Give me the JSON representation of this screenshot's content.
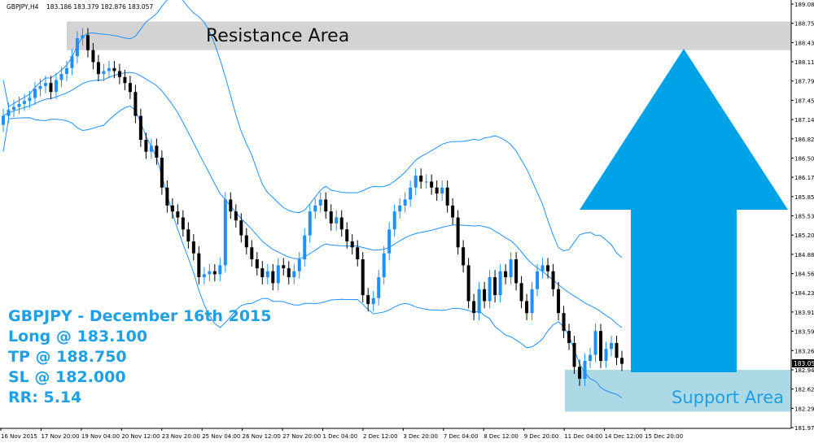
{
  "header": {
    "symbol": "GBPJPY,H4",
    "ohlc": "183.186 183.379 182.876 183.057"
  },
  "zones": {
    "resistance_label": "Resistance Area",
    "support_label": "Support Area"
  },
  "trade_box": {
    "lines": [
      "GBPJPY - December 16th 2015",
      "Long @ 183.100",
      "TP @ 188.750",
      "SL @ 182.000",
      "RR: 5.14"
    ]
  },
  "current_price_label": "183.057",
  "colors": {
    "bull": "#1e90ff",
    "bear": "#000000",
    "band": "#1e90ff",
    "resistance_zone": "#d3d3d3",
    "support_zone": "#add8e6",
    "arrow": "#00a2e8",
    "text_accent": "#1e9fe6"
  },
  "chart_data": {
    "type": "candlestick",
    "y_axis": {
      "ylim": [
        181.97,
        189.085
      ],
      "tick_labels": [
        "189.085",
        "188.750",
        "188.435",
        "188.110",
        "187.790",
        "187.455",
        "187.145",
        "186.820",
        "186.500",
        "186.175",
        "185.850",
        "185.530",
        "185.205",
        "184.880",
        "184.560",
        "184.235",
        "183.910",
        "183.590",
        "183.265",
        "182.940",
        "182.620",
        "182.295",
        "181.970"
      ]
    },
    "x_axis": {
      "tick_labels": [
        "16 Nov 2015",
        "17 Nov 20:00",
        "19 Nov 04:00",
        "20 Nov 12:00",
        "23 Nov 20:00",
        "25 Nov 04:00",
        "26 Nov 12:00",
        "27 Nov 20:00",
        "1 Dec 04:00",
        "2 Dec 12:00",
        "3 Dec 20:00",
        "7 Dec 04:00",
        "8 Dec 12:00",
        "9 Dec 20:00",
        "11 Dec 04:00",
        "14 Dec 12:00",
        "15 Dec 20:00"
      ]
    },
    "resistance_zone": [
      188.3,
      188.78
    ],
    "support_zone": [
      182.25,
      182.95
    ],
    "trend_arrow": "up",
    "series": [
      {
        "name": "candles",
        "close": [
          187.2,
          187.3,
          187.35,
          187.4,
          187.45,
          187.5,
          187.65,
          187.7,
          187.75,
          187.6,
          187.8,
          187.9,
          188.0,
          188.2,
          188.5,
          188.55,
          188.3,
          188.1,
          187.9,
          187.95,
          188.0,
          187.95,
          187.85,
          187.75,
          187.6,
          187.2,
          186.8,
          186.6,
          186.7,
          186.5,
          186.0,
          185.7,
          185.6,
          185.5,
          185.3,
          185.1,
          184.9,
          184.5,
          184.55,
          184.6,
          184.55,
          184.7,
          185.8,
          185.6,
          185.45,
          185.2,
          185.0,
          184.8,
          184.65,
          184.5,
          184.6,
          184.4,
          184.7,
          184.65,
          184.5,
          184.6,
          184.8,
          185.2,
          185.6,
          185.7,
          185.8,
          185.6,
          185.4,
          185.5,
          185.3,
          185.1,
          185.0,
          184.8,
          184.2,
          184.05,
          184.15,
          184.5,
          184.9,
          185.3,
          185.6,
          185.7,
          185.8,
          186.0,
          186.2,
          186.1,
          186.1,
          186.0,
          185.9,
          186.0,
          185.7,
          185.5,
          185.0,
          184.7,
          184.1,
          183.9,
          184.3,
          184.1,
          184.5,
          184.2,
          184.6,
          184.5,
          184.8,
          184.4,
          184.1,
          183.9,
          184.3,
          184.6,
          184.7,
          184.6,
          184.3,
          183.9,
          183.6,
          183.4,
          183.0,
          182.8,
          183.1,
          183.2,
          183.6,
          183.1,
          183.3,
          183.4,
          183.15,
          183.05
        ],
        "open": [
          187.05,
          187.2,
          187.3,
          187.35,
          187.4,
          187.45,
          187.5,
          187.65,
          187.7,
          187.75,
          187.6,
          187.8,
          187.9,
          188.0,
          188.2,
          188.5,
          188.55,
          188.3,
          188.1,
          187.9,
          187.95,
          188.0,
          187.95,
          187.85,
          187.75,
          187.6,
          187.2,
          186.8,
          186.6,
          186.7,
          186.5,
          186.0,
          185.7,
          185.6,
          185.5,
          185.3,
          185.1,
          184.9,
          184.5,
          184.55,
          184.6,
          184.55,
          184.7,
          185.8,
          185.6,
          185.45,
          185.2,
          185.0,
          184.8,
          184.65,
          184.5,
          184.6,
          184.4,
          184.7,
          184.65,
          184.5,
          184.6,
          184.8,
          185.2,
          185.6,
          185.7,
          185.8,
          185.6,
          185.4,
          185.5,
          185.3,
          185.1,
          185.0,
          184.8,
          184.2,
          184.05,
          184.15,
          184.5,
          184.9,
          185.3,
          185.6,
          185.7,
          185.8,
          186.0,
          186.2,
          186.1,
          186.1,
          186.0,
          185.9,
          186.0,
          185.7,
          185.5,
          185.0,
          184.7,
          184.1,
          183.9,
          184.3,
          184.1,
          184.5,
          184.2,
          184.6,
          184.5,
          184.8,
          184.4,
          184.1,
          183.9,
          184.3,
          184.6,
          184.7,
          184.6,
          184.3,
          183.9,
          183.6,
          183.4,
          183.0,
          182.8,
          183.1,
          183.2,
          183.6,
          183.1,
          183.3,
          183.4,
          183.15
        ]
      }
    ]
  }
}
